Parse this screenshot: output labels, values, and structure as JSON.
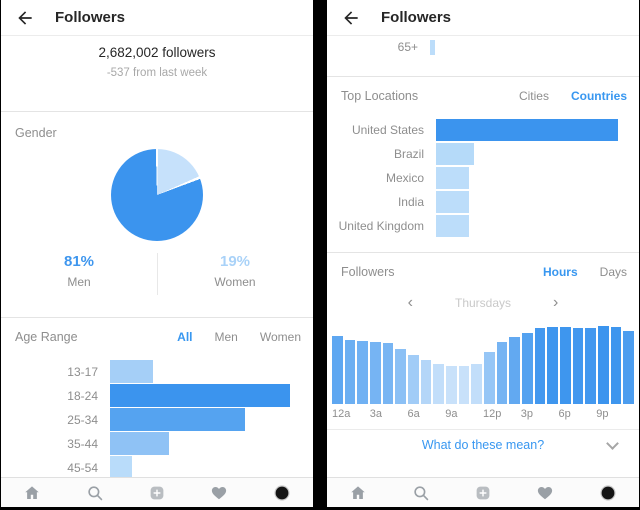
{
  "colors": {
    "accent_blue": "#3897F0",
    "bar_blue_strong": "#3B94EE",
    "bar_blue_light": "#C6E1FB",
    "text_dark": "#262626",
    "text_gray": "#8e8e8e",
    "nav_icon_gray": "#9aa0a6"
  },
  "left_panel": {
    "header": {
      "title": "Followers"
    },
    "summary": {
      "count": "2,682,002 followers",
      "change": "-537 from last week"
    },
    "gender": {
      "section_label": "Gender",
      "men_percent": "81%",
      "men_label": "Men",
      "women_percent": "19%",
      "women_label": "Women"
    },
    "age_range": {
      "section_label": "Age Range",
      "tabs": [
        "All",
        "Men",
        "Women"
      ],
      "active_tab": "All"
    }
  },
  "right_panel": {
    "header": {
      "title": "Followers"
    },
    "age_partial_label": "65+",
    "top_locations": {
      "section_label": "Top Locations",
      "tabs": [
        "Cities",
        "Countries"
      ],
      "active_tab": "Countries"
    },
    "followers_activity": {
      "section_label": "Followers",
      "tabs": [
        "Hours",
        "Days"
      ],
      "active_tab": "Hours",
      "prev_icon": "‹",
      "next_icon": "›",
      "period_label": "Thursdays",
      "help_link": "What do these mean?"
    }
  },
  "bottom_nav": {
    "icons": [
      "home",
      "search",
      "new-post",
      "activity-heart",
      "profile"
    ]
  },
  "chart_data": [
    {
      "type": "pie",
      "title": "Gender",
      "labels": [
        "Men",
        "Women"
      ],
      "values": [
        81,
        19
      ],
      "colors": [
        "#3B94EE",
        "#C6E1FB"
      ],
      "annotations": [
        "81% Men",
        "19% Women"
      ]
    },
    {
      "type": "bar",
      "orientation": "horizontal",
      "title": "Age Range — All",
      "categories": [
        "13-17",
        "18-24",
        "25-34",
        "35-44",
        "45-54"
      ],
      "values": [
        24,
        100,
        75,
        33,
        12
      ],
      "colors": [
        "#A5CFF7",
        "#3B94EE",
        "#55A3F0",
        "#8FC2F5",
        "#B9DCFA"
      ],
      "note": "values are bar lengths as percent of the longest bar (18-24); chart has no numeric axis"
    },
    {
      "type": "bar",
      "orientation": "horizontal",
      "title": "Top Locations — Countries",
      "categories": [
        "United States",
        "Brazil",
        "Mexico",
        "India",
        "United Kingdom"
      ],
      "values": [
        100,
        21,
        18,
        18,
        18
      ],
      "colors": [
        "#3B94EE",
        "#B5DAF9",
        "#BCDDFA",
        "#BCDDFA",
        "#BCDDFA"
      ],
      "note": "values are bar lengths as percent of the longest bar (United States); chart has no numeric axis"
    },
    {
      "type": "bar",
      "orientation": "vertical",
      "title": "Follower activity by hour — Thursdays",
      "x_tick_labels": [
        "12a",
        "3a",
        "6a",
        "9a",
        "12p",
        "3p",
        "6p",
        "9p"
      ],
      "hours": [
        "12a",
        "1a",
        "2a",
        "3a",
        "4a",
        "5a",
        "6a",
        "7a",
        "8a",
        "9a",
        "10a",
        "11a",
        "12p",
        "1p",
        "2p",
        "3p",
        "4p",
        "5p",
        "6p",
        "7p",
        "8p",
        "9p",
        "10p",
        "11p"
      ],
      "values": [
        87,
        82,
        81,
        79,
        78,
        71,
        63,
        56,
        51,
        49,
        49,
        51,
        67,
        79,
        86,
        91,
        97,
        99,
        99,
        97,
        97,
        100,
        99,
        94
      ],
      "colors": [
        "#5EA7F1",
        "#6CAFF2",
        "#70B1F3",
        "#76B4F3",
        "#78B5F3",
        "#8BC0F5",
        "#A1CCF7",
        "#B4D6F8",
        "#C2DEFA",
        "#C8E1FA",
        "#C8E1FA",
        "#C2DEFA",
        "#96C6F6",
        "#76B4F3",
        "#62A9F1",
        "#54A2F0",
        "#4398EF",
        "#3E96EE",
        "#3E96EE",
        "#4398EF",
        "#4398EF",
        "#3B94EE",
        "#3E96EE",
        "#4C9DEF"
      ],
      "note": "values are bar heights as percent of the tallest bar (9p); chart has no numeric axis"
    },
    {
      "type": "bar",
      "orientation": "horizontal",
      "title": "partially visible bottom row of Age Range chart",
      "categories": [
        "65+"
      ],
      "values": [
        3
      ],
      "colors": [
        "#BCDDFA"
      ]
    }
  ]
}
